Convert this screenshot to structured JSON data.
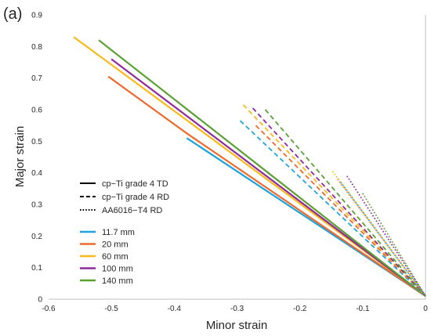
{
  "panel_label": "(a)",
  "chart_data": {
    "type": "line",
    "xlabel": "Minor strain",
    "ylabel": "Major strain",
    "xlim": [
      -0.6,
      0
    ],
    "ylim": [
      0,
      0.9
    ],
    "x_ticks": [
      "-0.6",
      "-0.5",
      "-0.4",
      "-0.3",
      "-0.2",
      "-0.1",
      "0"
    ],
    "y_ticks": [
      "0",
      "0.1",
      "0.2",
      "0.3",
      "0.4",
      "0.5",
      "0.6",
      "0.7",
      "0.8",
      "0.9"
    ],
    "grid": false,
    "legend_position": "left",
    "style_legend": [
      {
        "name": "cp−Ti grade 4 TD",
        "dash": "solid"
      },
      {
        "name": "cp−Ti grade 4 RD",
        "dash": "dashed"
      },
      {
        "name": "AA6016−T4 RD",
        "dash": "dotted"
      }
    ],
    "color_legend": [
      {
        "name": "11.7 mm",
        "color": "#1fa2db"
      },
      {
        "name": "20 mm",
        "color": "#ed6a2d"
      },
      {
        "name": "60 mm",
        "color": "#fbb915"
      },
      {
        "name": "100 mm",
        "color": "#8e2a9b"
      },
      {
        "name": "140 mm",
        "color": "#5aa032"
      }
    ],
    "series": [
      {
        "material": "cp−Ti grade 4 TD",
        "size": "11.7 mm",
        "color": "#1fa2db",
        "dash": "solid",
        "x": [
          -0.38,
          0
        ],
        "y": [
          0.51,
          0.01
        ]
      },
      {
        "material": "cp−Ti grade 4 TD",
        "size": "20 mm",
        "color": "#ed6a2d",
        "dash": "solid",
        "x": [
          -0.505,
          -0.38,
          0
        ],
        "y": [
          0.705,
          0.525,
          0.01
        ]
      },
      {
        "material": "cp−Ti grade 4 TD",
        "size": "60 mm",
        "color": "#fbb915",
        "dash": "solid",
        "x": [
          -0.56,
          0
        ],
        "y": [
          0.83,
          0.01
        ]
      },
      {
        "material": "cp−Ti grade 4 TD",
        "size": "100 mm",
        "color": "#8e2a9b",
        "dash": "solid",
        "x": [
          -0.5,
          0
        ],
        "y": [
          0.76,
          0.01
        ]
      },
      {
        "material": "cp−Ti grade 4 TD",
        "size": "140 mm",
        "color": "#5aa032",
        "dash": "solid",
        "x": [
          -0.52,
          0
        ],
        "y": [
          0.82,
          0.01
        ]
      },
      {
        "material": "cp−Ti grade 4 RD",
        "size": "11.7 mm",
        "color": "#1fa2db",
        "dash": "dashed",
        "x": [
          -0.295,
          0
        ],
        "y": [
          0.565,
          0.01
        ]
      },
      {
        "material": "cp−Ti grade 4 RD",
        "size": "20 mm",
        "color": "#ed6a2d",
        "dash": "dashed",
        "x": [
          -0.27,
          0
        ],
        "y": [
          0.55,
          0.01
        ]
      },
      {
        "material": "cp−Ti grade 4 RD",
        "size": "60 mm",
        "color": "#fbb915",
        "dash": "dashed",
        "x": [
          -0.29,
          0
        ],
        "y": [
          0.615,
          0.01
        ]
      },
      {
        "material": "cp−Ti grade 4 RD",
        "size": "100 mm",
        "color": "#8e2a9b",
        "dash": "dashed",
        "x": [
          -0.275,
          0
        ],
        "y": [
          0.605,
          0.01
        ]
      },
      {
        "material": "cp−Ti grade 4 RD",
        "size": "140 mm",
        "color": "#5aa032",
        "dash": "dashed",
        "x": [
          -0.255,
          0
        ],
        "y": [
          0.6,
          0.01
        ]
      },
      {
        "material": "AA6016−T4 RD",
        "size": "11.7 mm",
        "color": "#1fa2db",
        "dash": "dotted",
        "x": [
          -0.135,
          0
        ],
        "y": [
          0.37,
          0.01
        ]
      },
      {
        "material": "AA6016−T4 RD",
        "size": "20 mm",
        "color": "#ed6a2d",
        "dash": "dotted",
        "x": [
          -0.14,
          0
        ],
        "y": [
          0.38,
          0.01
        ]
      },
      {
        "material": "AA6016−T4 RD",
        "size": "60 mm",
        "color": "#fbb915",
        "dash": "dotted",
        "x": [
          -0.148,
          0
        ],
        "y": [
          0.405,
          0.01
        ]
      },
      {
        "material": "AA6016−T4 RD",
        "size": "100 mm",
        "color": "#8e2a9b",
        "dash": "dotted",
        "x": [
          -0.125,
          0
        ],
        "y": [
          0.39,
          0.01
        ]
      },
      {
        "material": "AA6016−T4 RD",
        "size": "140 mm",
        "color": "#5aa032",
        "dash": "dotted",
        "x": [
          -0.1,
          0
        ],
        "y": [
          0.335,
          0.01
        ]
      }
    ]
  }
}
